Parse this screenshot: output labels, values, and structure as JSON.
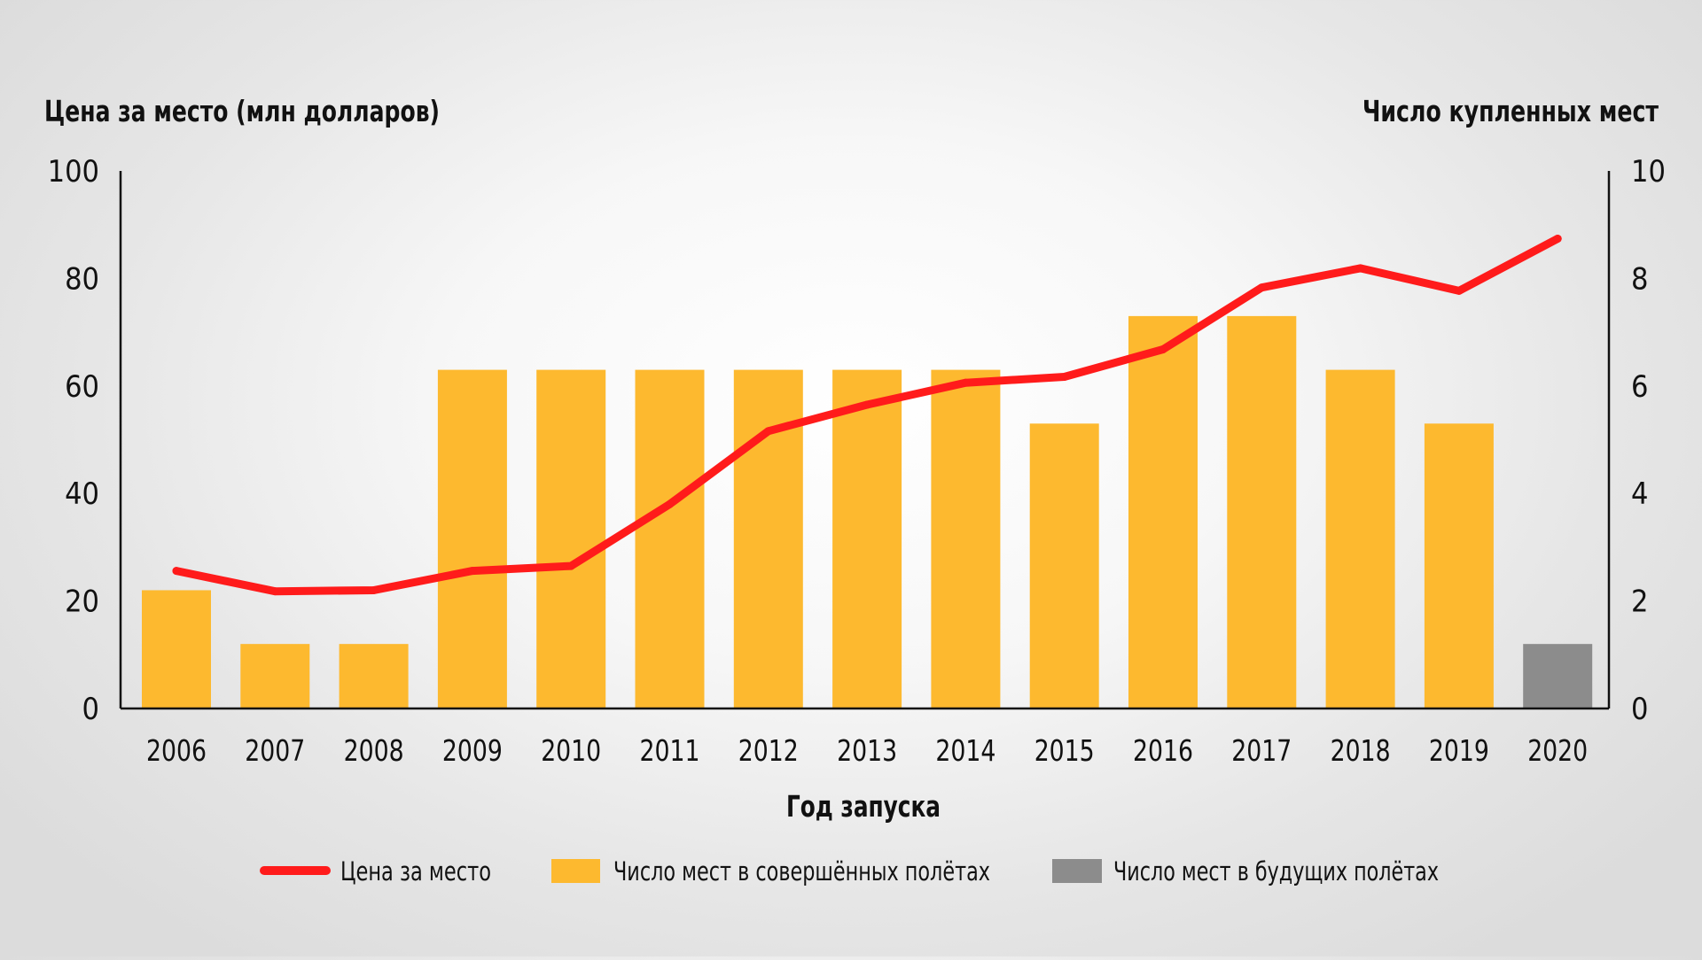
{
  "chart_data": {
    "type": "bar",
    "left_axis_title": "Цена за место (млн долларов)",
    "right_axis_title": "Число купленных мест",
    "xlabel": "Год запуска",
    "categories": [
      "2006",
      "2007",
      "2008",
      "2009",
      "2010",
      "2011",
      "2012",
      "2013",
      "2014",
      "2015",
      "2016",
      "2017",
      "2018",
      "2019",
      "2020"
    ],
    "left_ylim": [
      0,
      100
    ],
    "left_ticks": [
      "0",
      "20",
      "40",
      "60",
      "80",
      "100"
    ],
    "right_ylim": [
      0,
      10
    ],
    "right_ticks": [
      "0",
      "2",
      "4",
      "6",
      "8",
      "10"
    ],
    "series": [
      {
        "name": "Цена за место",
        "kind": "line",
        "axis": "left",
        "color": "#ff1b1b",
        "values": [
          25.6,
          21.8,
          22.0,
          25.6,
          26.5,
          38.0,
          51.6,
          56.5,
          60.6,
          61.7,
          66.8,
          78.3,
          81.9,
          77.7,
          87.4
        ]
      },
      {
        "name": "Число мест в совершённых полётах",
        "kind": "bar",
        "axis": "right",
        "color": "#fdb92f",
        "values": [
          2.2,
          1.2,
          1.2,
          6.3,
          6.3,
          6.3,
          6.3,
          6.3,
          6.3,
          5.3,
          7.3,
          7.3,
          6.3,
          5.3,
          null
        ]
      },
      {
        "name": "Число мест в будущих полётах",
        "kind": "bar",
        "axis": "right",
        "color": "#8c8c8c",
        "values": [
          null,
          null,
          null,
          null,
          null,
          null,
          null,
          null,
          null,
          null,
          null,
          null,
          null,
          null,
          1.2
        ]
      }
    ],
    "legend_position": "bottom",
    "grid": false
  }
}
